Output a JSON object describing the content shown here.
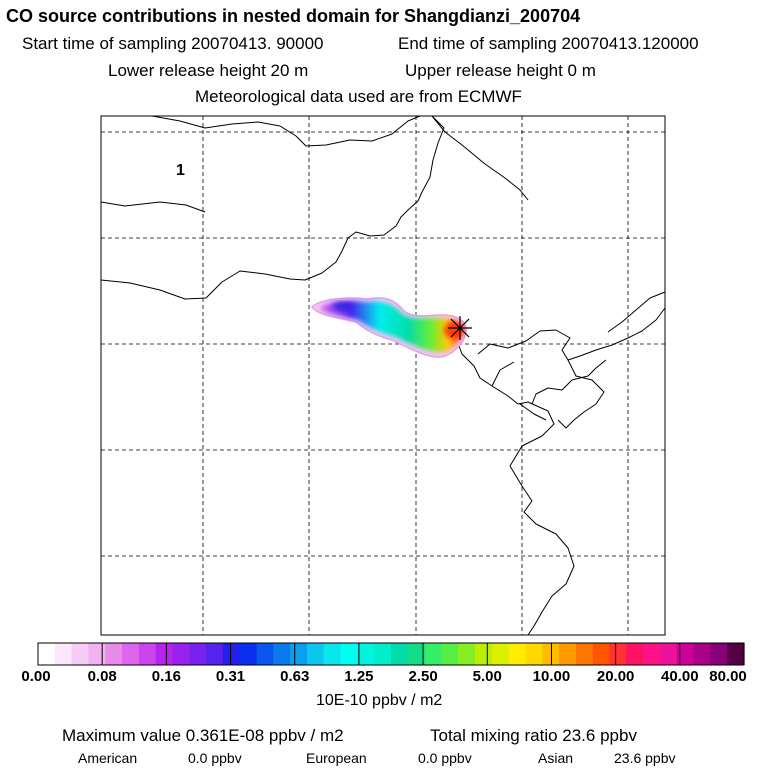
{
  "chart_data": {
    "type": "heatmap",
    "title": "CO  source contributions in nested domain for Shangdianzi_200704",
    "header_lines": [
      "Start time of sampling 20070413. 90000",
      "End time of sampling 20070413.120000",
      "Lower release height   20 m",
      "Upper release height    0 m",
      "Meteorological data used are from ECMWF"
    ],
    "panel_label": "1",
    "colorbar": {
      "tick_labels": [
        "0.00",
        "0.08",
        "0.16",
        "0.31",
        "0.63",
        "1.25",
        "2.50",
        "5.00",
        "10.00",
        "20.00",
        "40.00",
        "80.00"
      ],
      "unit_label": "10E-10 ppbv / m2",
      "colors": [
        "#ffffff",
        "#fbe6fb",
        "#f6ccf6",
        "#f0b2f0",
        "#e88ae8",
        "#dd66ee",
        "#cc44ee",
        "#b822ee",
        "#9a22ee",
        "#7722ee",
        "#5522ee",
        "#2222ee",
        "#0a2fee",
        "#0a55ee",
        "#0a7aee",
        "#0aa0ee",
        "#0ac8ee",
        "#0ae6ee",
        "#00ffee",
        "#00f5dd",
        "#00eecc",
        "#00ddaa",
        "#11dd88",
        "#33ee66",
        "#55ee44",
        "#88ee22",
        "#bbee00",
        "#ddee00",
        "#ffee00",
        "#ffd800",
        "#ffbb00",
        "#ff9900",
        "#ff7700",
        "#ff5500",
        "#ff3333",
        "#ff1166",
        "#ff1188",
        "#ee1199",
        "#cc0099",
        "#aa0088",
        "#880077",
        "#550044"
      ]
    },
    "receptor_marker": "star",
    "max_value_text": "Maximum value  0.361E-08 ppbv / m2",
    "total_mixing_text": "Total mixing ratio      23.6 ppbv",
    "region_labels": [
      "American",
      "European",
      "Asian"
    ],
    "region_values": [
      "0.0 ppbv",
      "0.0 ppbv",
      "23.6 ppbv"
    ]
  }
}
